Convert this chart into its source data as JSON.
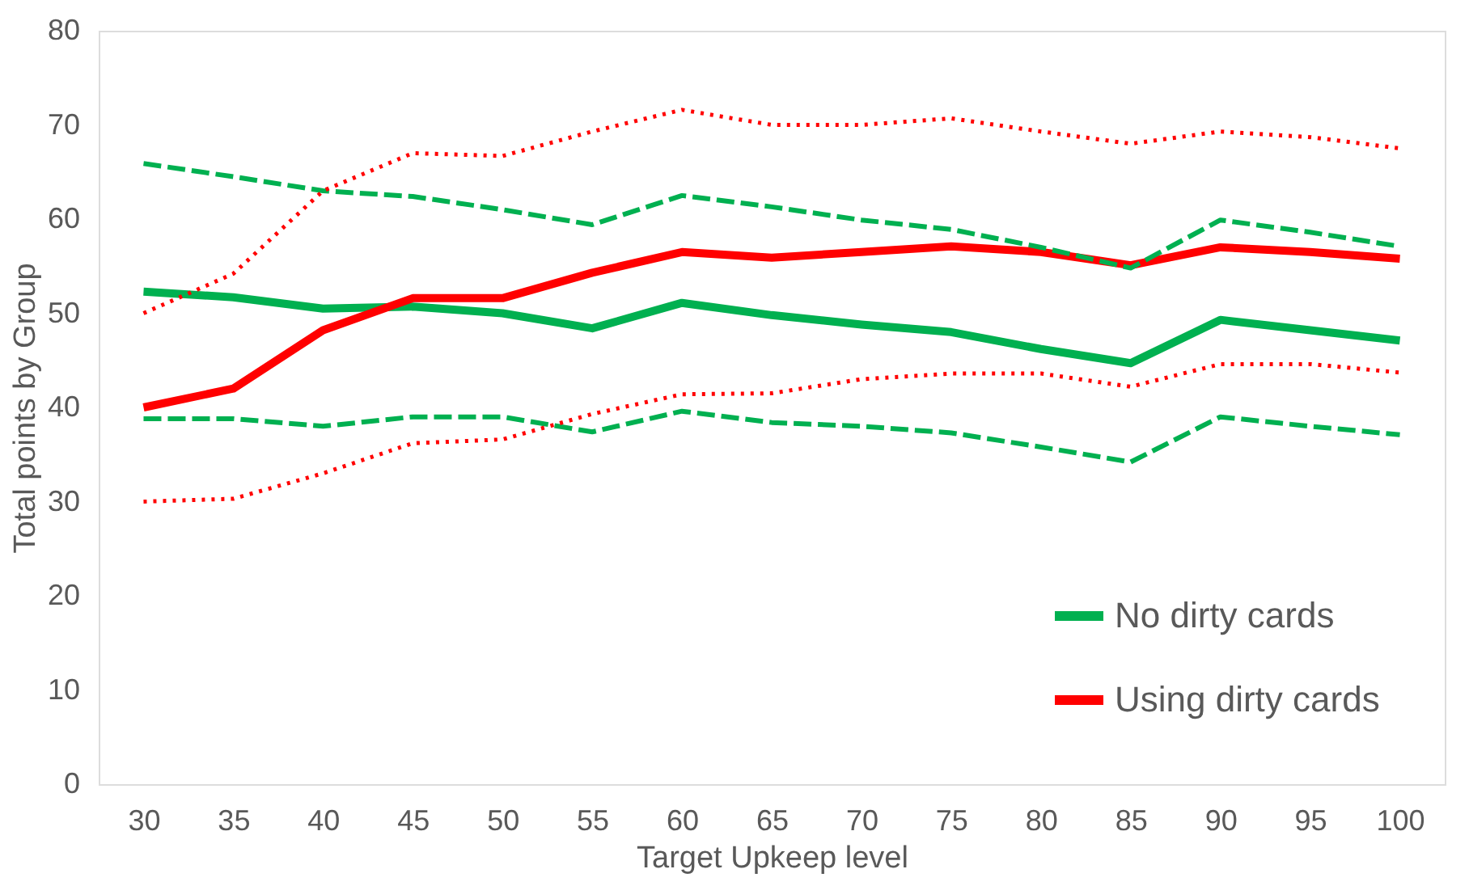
{
  "chart_data": {
    "type": "line",
    "xlabel": "Target  Upkeep level",
    "ylabel": "Total points by Group",
    "categories": [
      "30",
      "35",
      "40",
      "45",
      "50",
      "55",
      "60",
      "65",
      "70",
      "75",
      "80",
      "85",
      "90",
      "95",
      "100"
    ],
    "ylim": [
      0,
      80
    ],
    "yticks": [
      0,
      10,
      20,
      30,
      40,
      50,
      60,
      70,
      80
    ],
    "grid": false,
    "legend": "bottom right",
    "marker": "none",
    "series": [
      {
        "name": "No dirty cards",
        "color": "#00b050",
        "line_style": "solid",
        "values": [
          52.3,
          51.7,
          50.5,
          50.7,
          50.0,
          48.4,
          51.1,
          49.8,
          48.8,
          48.0,
          46.2,
          44.7,
          49.3,
          48.2,
          47.1
        ]
      },
      {
        "name": "Using dirty cards",
        "color": "#ff0000",
        "line_style": "solid",
        "values": [
          40.0,
          42.0,
          48.2,
          51.6,
          51.6,
          54.3,
          56.5,
          55.9,
          56.5,
          57.1,
          56.5,
          55.1,
          57.0,
          56.5,
          55.8
        ]
      },
      {
        "color": "#00b050",
        "line_style": "dashed",
        "values": [
          65.9,
          64.5,
          63.0,
          62.4,
          61.0,
          59.4,
          62.5,
          61.3,
          59.9,
          58.9,
          57.0,
          54.8,
          59.9,
          58.6,
          57.1
        ]
      },
      {
        "color": "#00b050",
        "line_style": "dashed",
        "values": [
          38.8,
          38.8,
          38.0,
          39.0,
          39.0,
          37.4,
          39.6,
          38.4,
          38.0,
          37.3,
          35.8,
          34.2,
          39.0,
          38.0,
          37.1
        ]
      },
      {
        "color": "#ff0000",
        "line_style": "dotted",
        "values": [
          50.0,
          54.2,
          63.0,
          67.0,
          66.7,
          69.3,
          71.6,
          70.0,
          70.0,
          70.7,
          69.3,
          68.0,
          69.3,
          68.7,
          67.5
        ]
      },
      {
        "color": "#ff0000",
        "line_style": "dotted",
        "values": [
          30.0,
          30.3,
          33.0,
          36.2,
          36.6,
          39.3,
          41.4,
          41.5,
          43.0,
          43.6,
          43.6,
          42.2,
          44.6,
          44.6,
          43.7
        ]
      }
    ]
  }
}
